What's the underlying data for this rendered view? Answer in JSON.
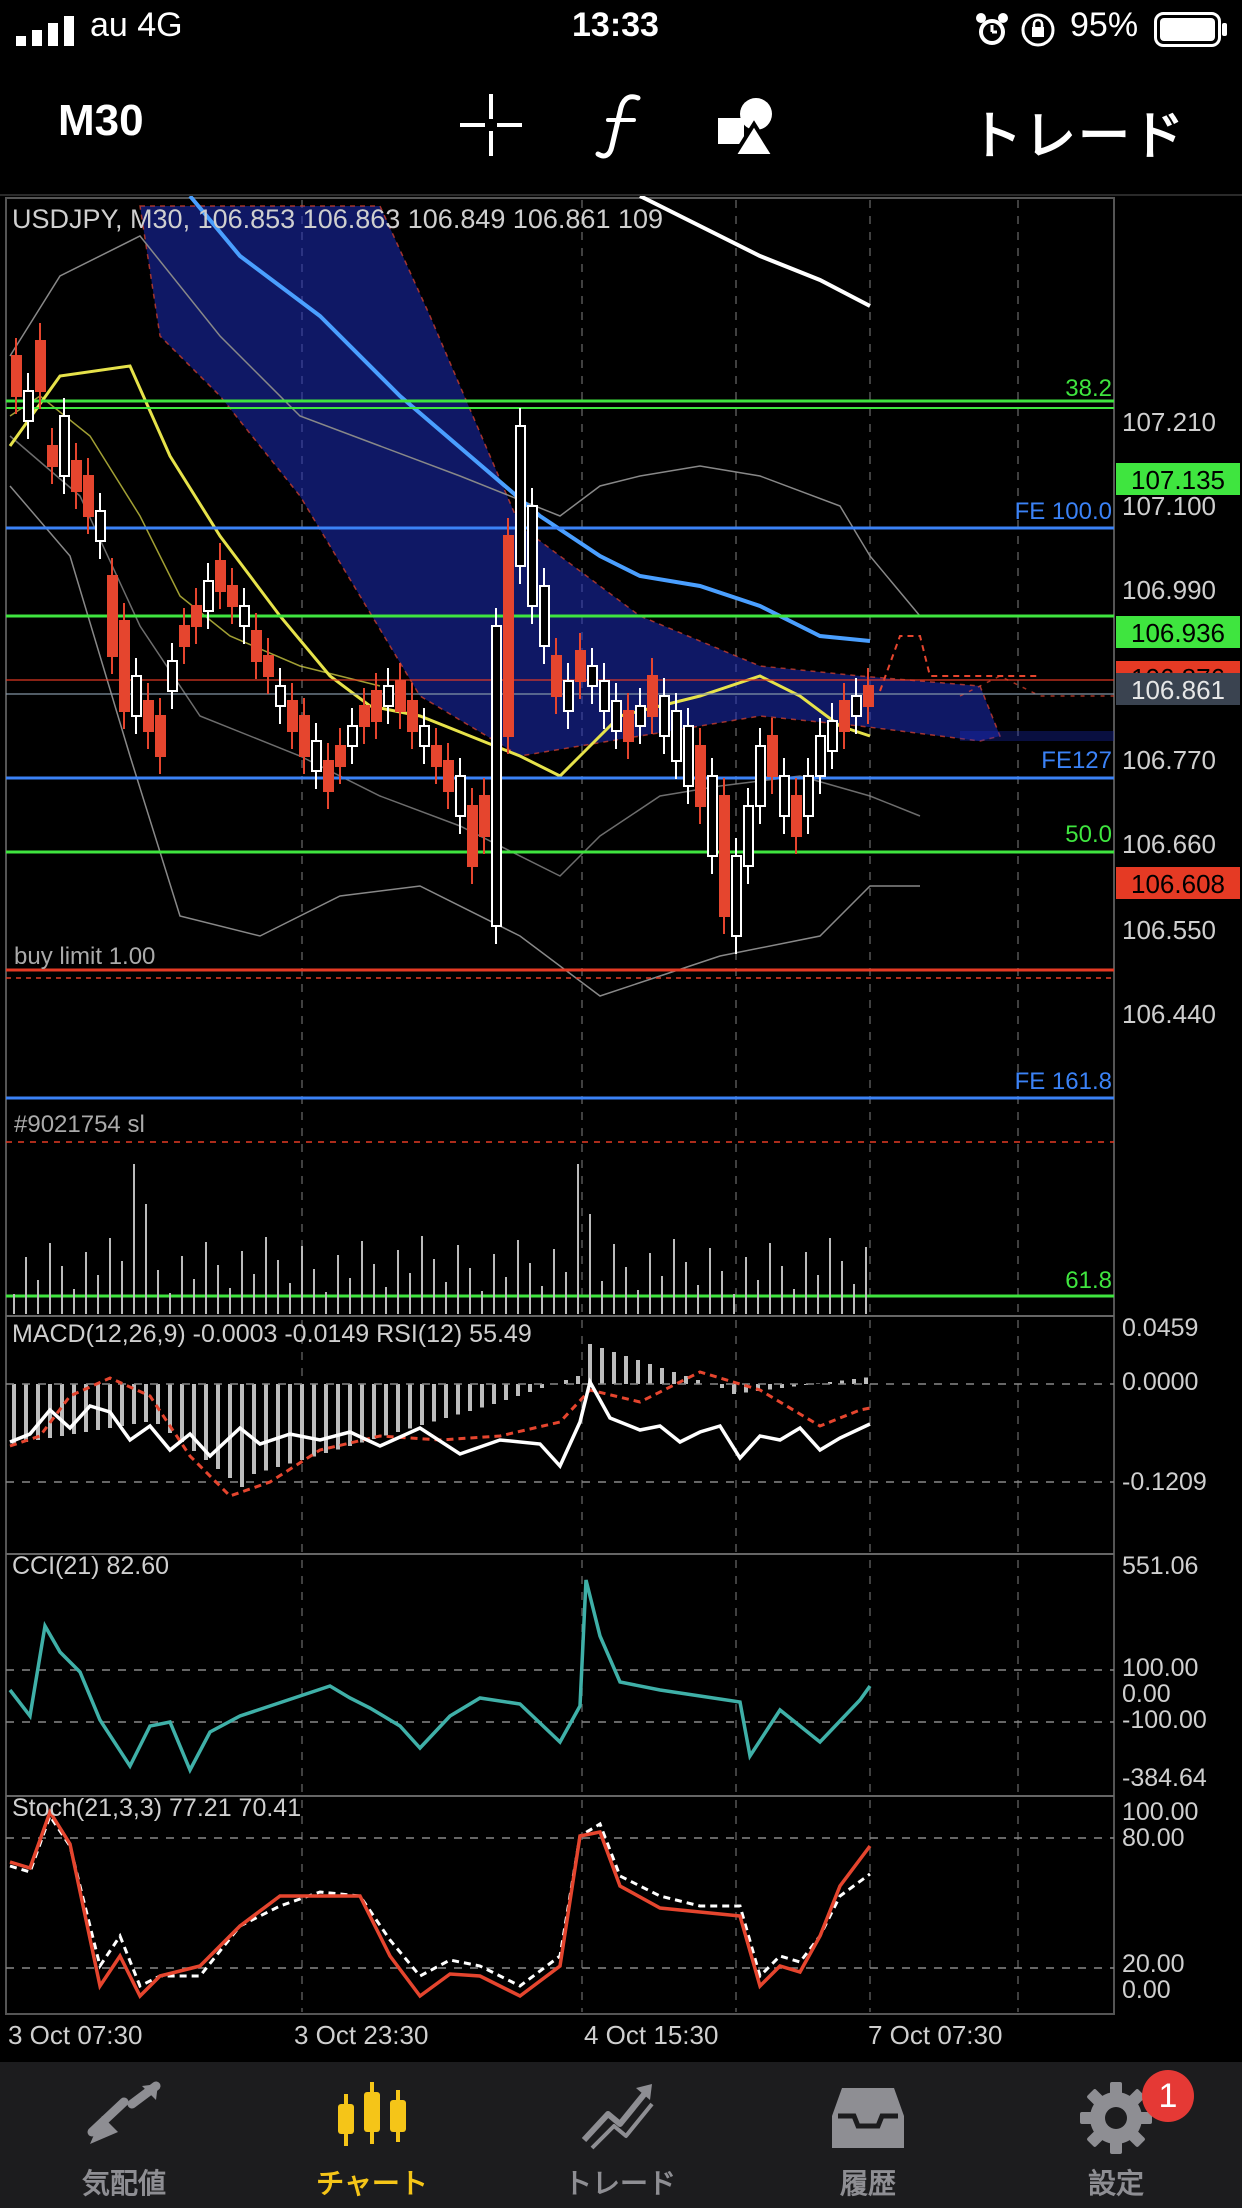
{
  "status_bar": {
    "carrier": "au 4G",
    "time": "13:33",
    "battery_percent": "95%"
  },
  "toolbar": {
    "period": "M30",
    "trade_label": "トレード",
    "icons": [
      "crosshair-icon",
      "function-icon",
      "objects-icon"
    ]
  },
  "chart": {
    "header": "USDJPY, M30, 106.853 106.863 106.849 106.861 109",
    "price_labels": [
      {
        "text": "107.210",
        "box": false
      },
      {
        "text": "107.135",
        "box": true,
        "color": "#3fe53f"
      },
      {
        "text": "107.100",
        "box": false
      },
      {
        "text": "106.990",
        "box": false
      },
      {
        "text": "106.936",
        "box": true,
        "color": "#3fe53f"
      },
      {
        "text": "106.876",
        "box": true,
        "color": "#e53a24"
      },
      {
        "text": "106.861",
        "box": true,
        "color": "#3a4350"
      },
      {
        "text": "106.770",
        "box": false
      },
      {
        "text": "106.660",
        "box": false
      },
      {
        "text": "106.608",
        "box": true,
        "color": "#e53a24"
      },
      {
        "text": "106.550",
        "box": false
      },
      {
        "text": "106.440",
        "box": false
      }
    ],
    "line_labels": {
      "fib_382": "38.2",
      "fe_100": "FE 100.0",
      "fe_127": "FE127",
      "fib_50": "50.0",
      "buy_limit": "buy limit 1.00",
      "fe_1618": "FE 161.8",
      "sl": "#9021754 sl",
      "fib_618": "61.8"
    },
    "macd": {
      "title": "MACD(12,26,9) -0.0003 -0.0149 RSI(12) 55.49",
      "scale": [
        "0.0459",
        "0.0000",
        "-0.1209"
      ]
    },
    "cci": {
      "title": "CCI(21) 82.60",
      "scale": [
        "551.06",
        "100.00",
        "0.00",
        "-100.00",
        "-384.64"
      ]
    },
    "stoch": {
      "title": "Stoch(21,3,3) 77.21 70.41",
      "scale": [
        "100.00",
        "80.00",
        "20.00",
        "0.00"
      ]
    },
    "time_labels": [
      "3 Oct 07:30",
      "3 Oct 23:30",
      "4 Oct 15:30",
      "7 Oct 07:30"
    ],
    "colors": {
      "bull": "#ffffff",
      "bear": "#e5452e",
      "fib": "#3fe53f",
      "fe": "#3b82f6",
      "order": "#e53a24",
      "ma_fast": "#e6e24a",
      "ma_slow": "#4a9fff"
    }
  },
  "tab_bar": {
    "active": "チャート",
    "tabs": [
      {
        "label": "気配値",
        "icon": "quotes-icon"
      },
      {
        "label": "チャート",
        "icon": "chart-icon"
      },
      {
        "label": "トレード",
        "icon": "trade-icon"
      },
      {
        "label": "履歴",
        "icon": "history-icon"
      },
      {
        "label": "設定",
        "icon": "settings-icon"
      }
    ],
    "settings_badge": "1"
  }
}
